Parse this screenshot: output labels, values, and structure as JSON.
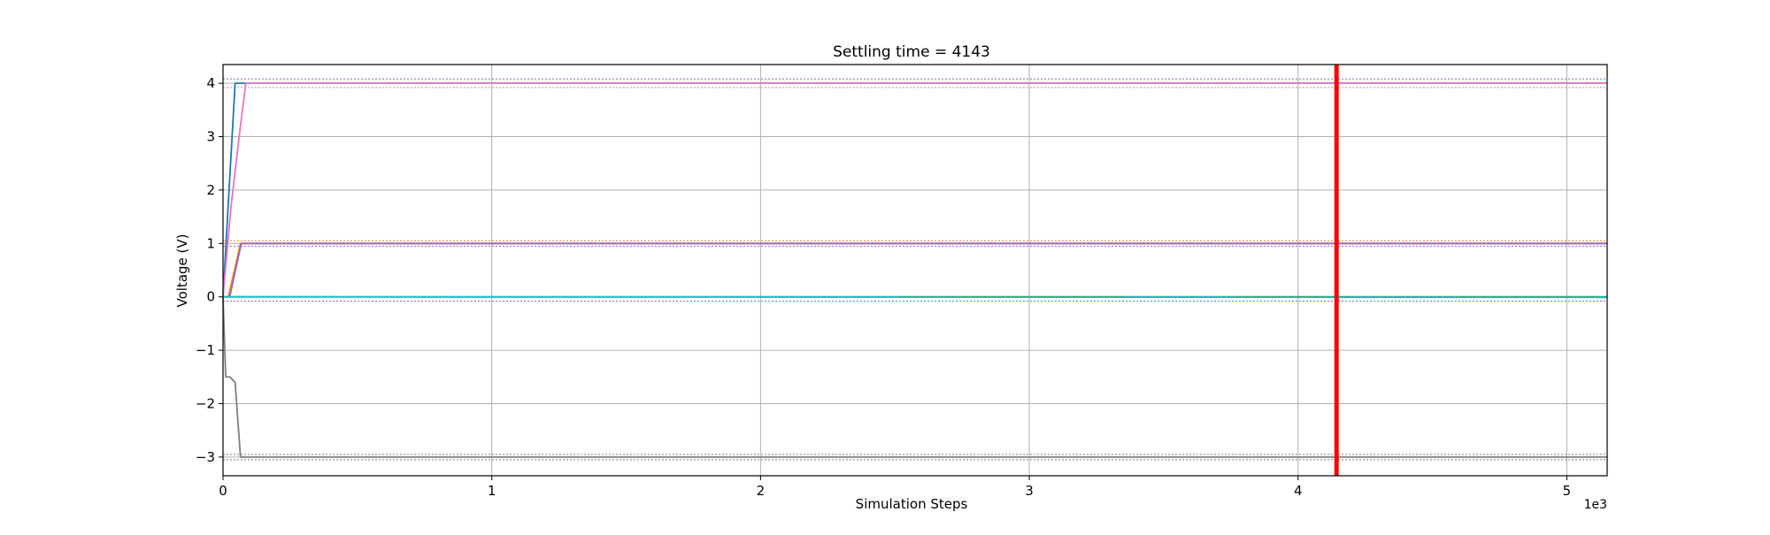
{
  "chart_data": {
    "type": "line",
    "title": "Settling time = 4143",
    "xlabel": "Simulation Steps",
    "ylabel": "Voltage (V)",
    "x_offset_label": "1e3",
    "xlim": [
      0,
      5150
    ],
    "ylim": [
      -3.35,
      4.35
    ],
    "x_ticks": [
      0,
      1000,
      2000,
      3000,
      4000,
      5000
    ],
    "x_tick_labels": [
      "0",
      "1",
      "2",
      "3",
      "4",
      "5"
    ],
    "y_ticks": [
      -3,
      -2,
      -1,
      0,
      1,
      2,
      3,
      4
    ],
    "y_tick_labels": [
      "−3",
      "−2",
      "−1",
      "0",
      "1",
      "2",
      "3",
      "4"
    ],
    "grid": true,
    "settling_time": 4143,
    "settling_line_color": "#ff0000",
    "series": [
      {
        "color": "#1f77b4",
        "x": [
          0,
          45,
          5150
        ],
        "y": [
          0,
          4.0,
          4.0
        ]
      },
      {
        "color": "#e377c2",
        "x": [
          0,
          30,
          60,
          85,
          5150
        ],
        "y": [
          0,
          1.7,
          3.0,
          4.0,
          4.0
        ]
      },
      {
        "color": "#ff7f0e",
        "x": [
          0,
          20,
          65,
          5150
        ],
        "y": [
          0,
          0,
          1.0,
          1.0
        ]
      },
      {
        "color": "#9467bd",
        "x": [
          0,
          25,
          68,
          5150
        ],
        "y": [
          0,
          0,
          1.0,
          1.0
        ]
      },
      {
        "color": "#2ca02c",
        "x": [
          0,
          5150
        ],
        "y": [
          0,
          0
        ]
      },
      {
        "color": "#17becf",
        "x": [
          0,
          5150
        ],
        "y": [
          0,
          -0.01
        ]
      },
      {
        "color": "#7f7f7f",
        "x": [
          0,
          10,
          25,
          45,
          65,
          5150
        ],
        "y": [
          0,
          -1.5,
          -1.5,
          -1.6,
          -3.0,
          -3.0
        ]
      }
    ],
    "tolerance_bands": [
      {
        "color": "#9467bd",
        "y": 4.08
      },
      {
        "color": "#e377c2",
        "y": 3.92
      },
      {
        "color": "#ff7f0e",
        "y": 1.05
      },
      {
        "color": "#9467bd",
        "y": 0.95
      },
      {
        "color": "#9467bd",
        "y": -0.08
      },
      {
        "color": "#7f7f7f",
        "y": -2.95
      },
      {
        "color": "#7f7f7f",
        "y": -3.05
      }
    ]
  }
}
